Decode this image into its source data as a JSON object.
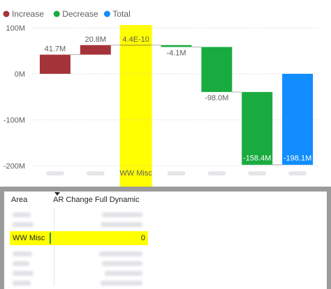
{
  "legend": [
    {
      "label": "Increase",
      "color": "#a4343a"
    },
    {
      "label": "Decrease",
      "color": "#1aab40"
    },
    {
      "label": "Total",
      "color": "#118dff"
    }
  ],
  "chart_data": {
    "type": "bar",
    "subtype": "waterfall",
    "ylim": [
      -200,
      100
    ],
    "yticks": [
      {
        "value": 100,
        "label": "100M"
      },
      {
        "value": 0,
        "label": "0M"
      },
      {
        "value": -100,
        "label": "-100M"
      },
      {
        "value": -200,
        "label": "-200M"
      }
    ],
    "categories": [
      "",
      "",
      "WW Misc",
      "",
      "",
      "",
      ""
    ],
    "steps": [
      {
        "kind": "increase",
        "start": 0,
        "end": 41.7,
        "label": "41.7M"
      },
      {
        "kind": "increase",
        "start": 41.7,
        "end": 62.5,
        "label": "20.8M"
      },
      {
        "kind": "increase",
        "start": 62.5,
        "end": 62.5,
        "label": "4.4E-10",
        "highlighted": true
      },
      {
        "kind": "decrease",
        "start": 62.5,
        "end": 58.4,
        "label": "-4.1M"
      },
      {
        "kind": "decrease",
        "start": 58.4,
        "end": -39.6,
        "label": "-98.0M"
      },
      {
        "kind": "decrease",
        "start": -39.6,
        "end": -198.1,
        "label": "-158.4M"
      },
      {
        "kind": "total",
        "start": 0,
        "end": -198.1,
        "label": "-198.1M"
      }
    ],
    "highlight_color": "#ffff00"
  },
  "table": {
    "headers": {
      "area": "Area",
      "value": "AR Change Full Dynamic"
    },
    "highlight_row": {
      "area": "WW Misc",
      "value": "0"
    }
  }
}
